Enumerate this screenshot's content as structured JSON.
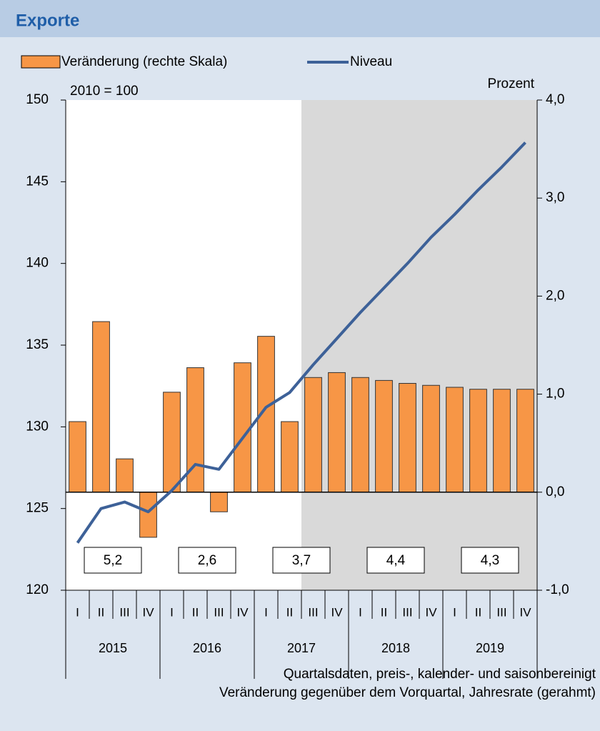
{
  "chart_data": {
    "type": "bar_line",
    "title": "Exporte",
    "y_label": "2010 = 100",
    "y2_label": "Prozent",
    "footnotes": [
      "Quartalsdaten, preis-, kalender- und saisonbereinigt",
      "Veränderung gegenüber dem Vorquartal, Jahresrate (gerahmt)"
    ],
    "categories": [
      "I",
      "II",
      "III",
      "IV",
      "I",
      "II",
      "III",
      "IV",
      "I",
      "II",
      "III",
      "IV",
      "I",
      "II",
      "III",
      "IV",
      "I",
      "II",
      "III",
      "IV"
    ],
    "years": [
      "2015",
      "2016",
      "2017",
      "2018",
      "2019"
    ],
    "annual_rates": [
      "5,2",
      "2,6",
      "3,7",
      "4,4",
      "4,3"
    ],
    "shaded_from_index": 10,
    "series": [
      {
        "name": "Veränderung (rechte Skala)",
        "type": "bar",
        "axis": "y2",
        "color": "#f79646",
        "values": [
          0.72,
          1.74,
          0.34,
          -0.46,
          1.02,
          1.27,
          -0.2,
          1.32,
          1.59,
          0.72,
          1.17,
          1.22,
          1.17,
          1.14,
          1.11,
          1.09,
          1.07,
          1.05,
          1.05,
          1.05
        ]
      },
      {
        "name": "Niveau",
        "type": "line",
        "color": "#3d6198",
        "values": [
          122.9,
          125.0,
          125.4,
          124.8,
          126.1,
          127.7,
          127.4,
          129.3,
          131.2,
          132.1,
          133.8,
          135.4,
          137.0,
          138.5,
          140.0,
          141.6,
          143.0,
          144.5,
          145.9,
          147.4
        ]
      }
    ],
    "ylim": [
      120,
      150
    ],
    "yticks": [
      120,
      125,
      130,
      135,
      140,
      145,
      150
    ],
    "y2lim": [
      -1,
      4
    ],
    "y2ticks": [
      {
        "value": -1,
        "label": "-1,0"
      },
      {
        "value": 0,
        "label": "0,0"
      },
      {
        "value": 1,
        "label": "1,0"
      },
      {
        "value": 2,
        "label": "2,0"
      },
      {
        "value": 3,
        "label": "3,0"
      },
      {
        "value": 4,
        "label": "4,0"
      }
    ]
  }
}
